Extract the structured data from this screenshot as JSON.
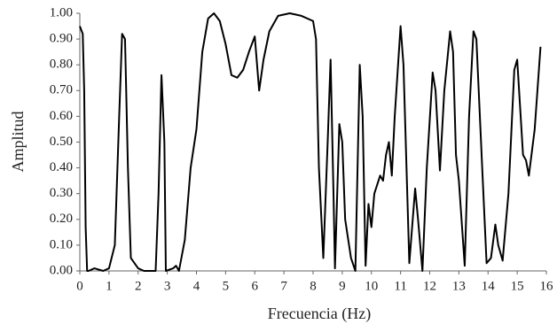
{
  "chart_data": {
    "type": "line",
    "x_label": "Frecuencia (Hz)",
    "y_label": "Amplitud",
    "x": [
      0,
      0.1,
      0.15,
      0.2,
      0.25,
      0.3,
      0.5,
      0.8,
      1.0,
      1.2,
      1.35,
      1.45,
      1.55,
      1.65,
      1.75,
      2.0,
      2.2,
      2.6,
      2.7,
      2.8,
      2.9,
      2.95,
      3.2,
      3.3,
      3.4,
      3.6,
      3.8,
      4.0,
      4.2,
      4.4,
      4.6,
      4.8,
      5.0,
      5.2,
      5.4,
      5.6,
      5.8,
      6.0,
      6.15,
      6.3,
      6.5,
      6.8,
      7.2,
      7.6,
      8.0,
      8.1,
      8.2,
      8.35,
      8.5,
      8.6,
      8.7,
      8.75,
      8.9,
      9.0,
      9.1,
      9.3,
      9.45,
      9.6,
      9.7,
      9.8,
      9.9,
      10.0,
      10.1,
      10.3,
      10.4,
      10.5,
      10.6,
      10.7,
      10.8,
      11.0,
      11.1,
      11.3,
      11.5,
      11.6,
      11.75,
      11.9,
      12.1,
      12.2,
      12.35,
      12.5,
      12.7,
      12.8,
      12.9,
      13.0,
      13.2,
      13.35,
      13.5,
      13.6,
      13.8,
      13.95,
      14.1,
      14.25,
      14.35,
      14.5,
      14.7,
      14.9,
      15.0,
      15.2,
      15.3,
      15.4,
      15.6,
      15.8
    ],
    "series": [
      {
        "name": "Amplitud",
        "color": "#000000",
        "values": [
          0.95,
          0.92,
          0.7,
          0.17,
          0.0,
          0.0,
          0.01,
          0.0,
          0.01,
          0.1,
          0.6,
          0.92,
          0.9,
          0.4,
          0.05,
          0.01,
          0.0,
          0.0,
          0.3,
          0.76,
          0.5,
          0.0,
          0.01,
          0.02,
          0.0,
          0.12,
          0.4,
          0.55,
          0.85,
          0.98,
          1.0,
          0.97,
          0.88,
          0.76,
          0.75,
          0.78,
          0.85,
          0.91,
          0.7,
          0.82,
          0.93,
          0.99,
          1.0,
          0.99,
          0.97,
          0.9,
          0.4,
          0.05,
          0.5,
          0.82,
          0.3,
          0.01,
          0.57,
          0.5,
          0.2,
          0.05,
          0.0,
          0.8,
          0.6,
          0.02,
          0.26,
          0.17,
          0.3,
          0.37,
          0.35,
          0.45,
          0.5,
          0.37,
          0.6,
          0.95,
          0.8,
          0.03,
          0.32,
          0.2,
          0.0,
          0.4,
          0.77,
          0.7,
          0.39,
          0.7,
          0.93,
          0.85,
          0.45,
          0.35,
          0.02,
          0.6,
          0.93,
          0.9,
          0.4,
          0.03,
          0.05,
          0.18,
          0.1,
          0.04,
          0.3,
          0.78,
          0.82,
          0.45,
          0.43,
          0.37,
          0.55,
          0.87
        ]
      }
    ],
    "xlim": [
      0,
      16
    ],
    "xticks": [
      0,
      1,
      2,
      3,
      4,
      5,
      6,
      7,
      8,
      9,
      10,
      11,
      12,
      13,
      14,
      15,
      16
    ],
    "ylim": [
      0,
      1
    ],
    "yticks": [
      {
        "value": 0,
        "label": "0.00"
      },
      {
        "value": 0.1,
        "label": "0.10"
      },
      {
        "value": 0.2,
        "label": "0.20"
      },
      {
        "value": 0.3,
        "label": "0.30"
      },
      {
        "value": 0.4,
        "label": "0.40"
      },
      {
        "value": 0.5,
        "label": "0.50"
      },
      {
        "value": 0.6,
        "label": "0.60"
      },
      {
        "value": 0.7,
        "label": "0.70"
      },
      {
        "value": 0.8,
        "label": "0.80"
      },
      {
        "value": 0.9,
        "label": "0.90"
      },
      {
        "value": 1,
        "label": "1.00"
      }
    ],
    "grid": false
  }
}
